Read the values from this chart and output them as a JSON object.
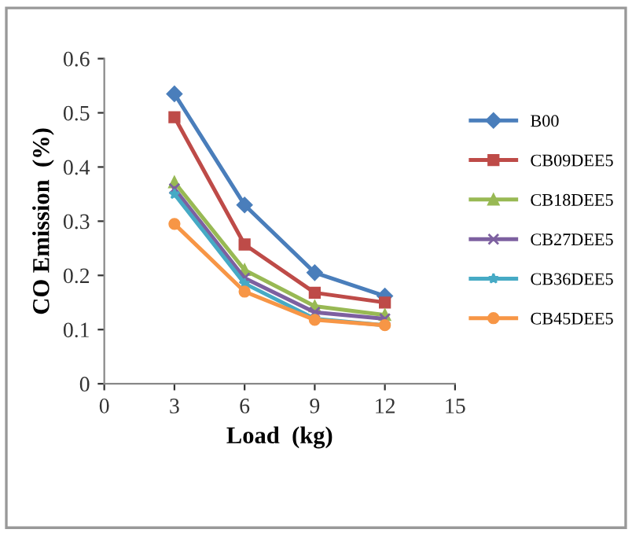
{
  "chart_data": {
    "type": "line",
    "xlabel": "Load  (kg)",
    "ylabel": "CO Emission  (%)",
    "x": [
      3,
      6,
      9,
      12
    ],
    "series": [
      {
        "name": "B00",
        "color": "#4a7ebb",
        "marker": "diamond",
        "values": [
          0.535,
          0.33,
          0.205,
          0.162
        ]
      },
      {
        "name": "CB09DEE5",
        "color": "#be4b48",
        "marker": "square",
        "values": [
          0.492,
          0.257,
          0.168,
          0.15
        ]
      },
      {
        "name": "CB18DEE5",
        "color": "#98b954",
        "marker": "triangle",
        "values": [
          0.372,
          0.21,
          0.143,
          0.127
        ]
      },
      {
        "name": "CB27DEE5",
        "color": "#7d60a0",
        "marker": "cross",
        "values": [
          0.36,
          0.195,
          0.132,
          0.12
        ]
      },
      {
        "name": "CB36DEE5",
        "color": "#46aac5",
        "marker": "star",
        "values": [
          0.35,
          0.185,
          0.12,
          0.108
        ]
      },
      {
        "name": "CB45DEE5",
        "color": "#f79646",
        "marker": "circle",
        "values": [
          0.295,
          0.17,
          0.118,
          0.108
        ]
      }
    ],
    "xlim": [
      0,
      15
    ],
    "xticks": [
      0,
      3,
      6,
      9,
      12,
      15
    ],
    "ylim": [
      0,
      0.6
    ],
    "yticks": [
      0,
      0.1,
      0.2,
      0.3,
      0.4,
      0.5,
      0.6
    ],
    "grid": false,
    "legend": "right",
    "line_style": "solid"
  }
}
